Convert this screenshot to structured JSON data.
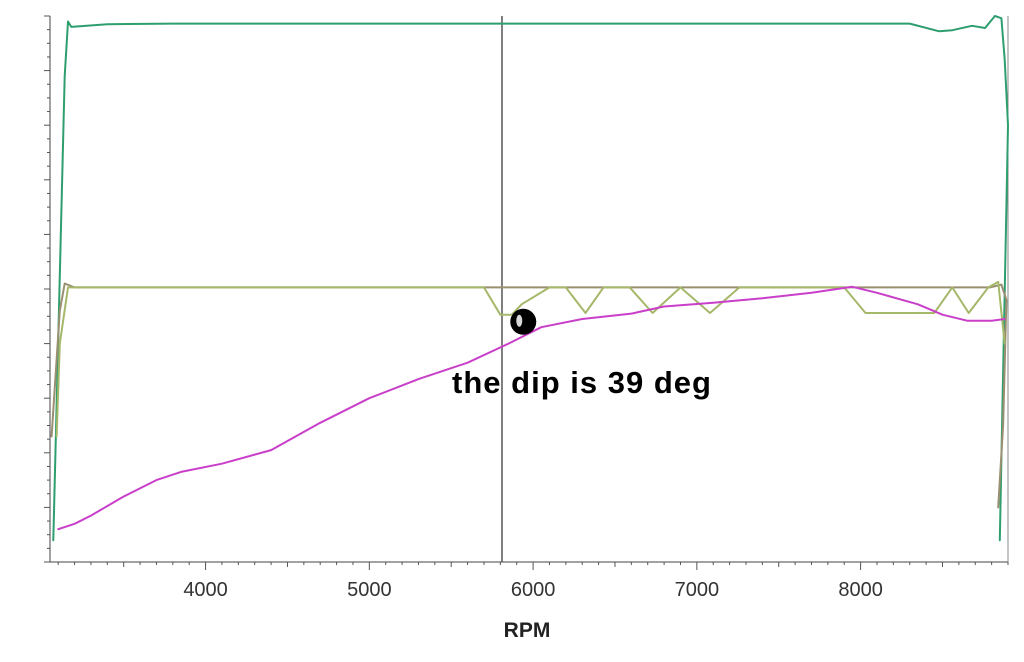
{
  "chart_data": {
    "type": "line",
    "title": "",
    "xlabel": "RPM",
    "ylabel": "",
    "xlim": [
      3050,
      8900
    ],
    "ylim": [
      0,
      100
    ],
    "x_ticks": [
      4000,
      5000,
      6000,
      7000,
      8000
    ],
    "grid": false,
    "cursor_x": 5810,
    "colors": {
      "green": "#2e9e6e",
      "magenta": "#c93fc9",
      "olive": "#a5b86a",
      "brown": "#9a8f70",
      "cursor": "#555555",
      "marker": "#000000"
    },
    "annotation": {
      "text": "the dip is 39 deg",
      "marker_x": 5940,
      "marker_y": 44
    },
    "series": [
      {
        "color": "green",
        "points": [
          [
            3070,
            4
          ],
          [
            3140,
            89
          ],
          [
            3160,
            99
          ],
          [
            3180,
            98
          ],
          [
            3400,
            98.5
          ],
          [
            3800,
            98.6
          ],
          [
            8300,
            98.6
          ],
          [
            8480,
            97.2
          ],
          [
            8560,
            97.4
          ],
          [
            8680,
            98.2
          ],
          [
            8760,
            97.8
          ],
          [
            8820,
            100
          ],
          [
            8860,
            99.6
          ],
          [
            8880,
            92
          ],
          [
            8900,
            80
          ],
          [
            8850,
            4
          ]
        ]
      },
      {
        "color": "brown",
        "points": [
          [
            3060,
            23
          ],
          [
            3110,
            46
          ],
          [
            3140,
            51
          ],
          [
            3200,
            50.3
          ],
          [
            8600,
            50.3
          ],
          [
            8790,
            50.3
          ],
          [
            8860,
            50.8
          ],
          [
            8890,
            48
          ],
          [
            8870,
            25
          ],
          [
            8840,
            10
          ]
        ]
      },
      {
        "color": "olive",
        "points": [
          [
            3090,
            23
          ],
          [
            3110,
            40
          ],
          [
            3160,
            50.3
          ],
          [
            5700,
            50.3
          ],
          [
            5800,
            45.3
          ],
          [
            5870,
            45.3
          ],
          [
            5930,
            47.2
          ],
          [
            6100,
            50.3
          ],
          [
            6200,
            50.3
          ],
          [
            6320,
            45.6
          ],
          [
            6430,
            50.3
          ],
          [
            6590,
            50.3
          ],
          [
            6730,
            45.6
          ],
          [
            6900,
            50.3
          ],
          [
            7080,
            45.6
          ],
          [
            7260,
            50.3
          ],
          [
            7900,
            50.3
          ],
          [
            8030,
            45.6
          ],
          [
            8450,
            45.6
          ],
          [
            8560,
            50.3
          ],
          [
            8660,
            45.6
          ],
          [
            8780,
            50.3
          ],
          [
            8840,
            51.3
          ],
          [
            8880,
            40
          ]
        ]
      },
      {
        "color": "magenta",
        "points": [
          [
            3100,
            6
          ],
          [
            3200,
            7
          ],
          [
            3300,
            8.5
          ],
          [
            3500,
            12
          ],
          [
            3700,
            15
          ],
          [
            3850,
            16.5
          ],
          [
            4100,
            18
          ],
          [
            4400,
            20.5
          ],
          [
            4700,
            25.5
          ],
          [
            5000,
            30
          ],
          [
            5300,
            33.5
          ],
          [
            5600,
            36.5
          ],
          [
            5850,
            40
          ],
          [
            6050,
            43
          ],
          [
            6300,
            44.5
          ],
          [
            6600,
            45.5
          ],
          [
            6800,
            46.8
          ],
          [
            7100,
            47.5
          ],
          [
            7400,
            48.3
          ],
          [
            7700,
            49.3
          ],
          [
            7950,
            50.4
          ],
          [
            8100,
            49.3
          ],
          [
            8350,
            47.2
          ],
          [
            8500,
            45.3
          ],
          [
            8650,
            44.2
          ],
          [
            8800,
            44.2
          ],
          [
            8880,
            44.5
          ]
        ]
      }
    ]
  }
}
